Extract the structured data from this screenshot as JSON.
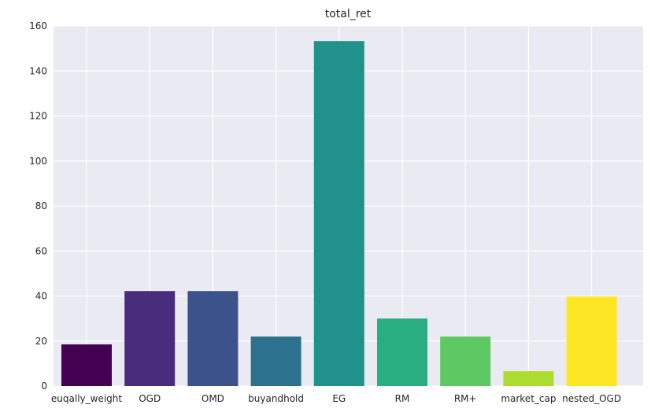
{
  "chart_data": {
    "type": "bar",
    "title": "total_ret",
    "xlabel": "",
    "ylabel": "",
    "categories": [
      "euqally_weight",
      "OGD",
      "OMD",
      "buyandhold",
      "EG",
      "RM",
      "RM+",
      "market_cap",
      "nested_OGD"
    ],
    "values": [
      18.5,
      42.2,
      42.2,
      22.0,
      153.3,
      30.0,
      22.0,
      6.6,
      39.8
    ],
    "colors": [
      "#440154",
      "#472d7b",
      "#3b528b",
      "#2c728e",
      "#21918c",
      "#28ae80",
      "#5ec962",
      "#addc30",
      "#fde725"
    ],
    "ylim": [
      0,
      160
    ],
    "yticks": [
      0,
      20,
      40,
      60,
      80,
      100,
      120,
      140,
      160
    ],
    "grid": true,
    "background": "#eaeaf2",
    "grid_color": "#ffffff"
  }
}
